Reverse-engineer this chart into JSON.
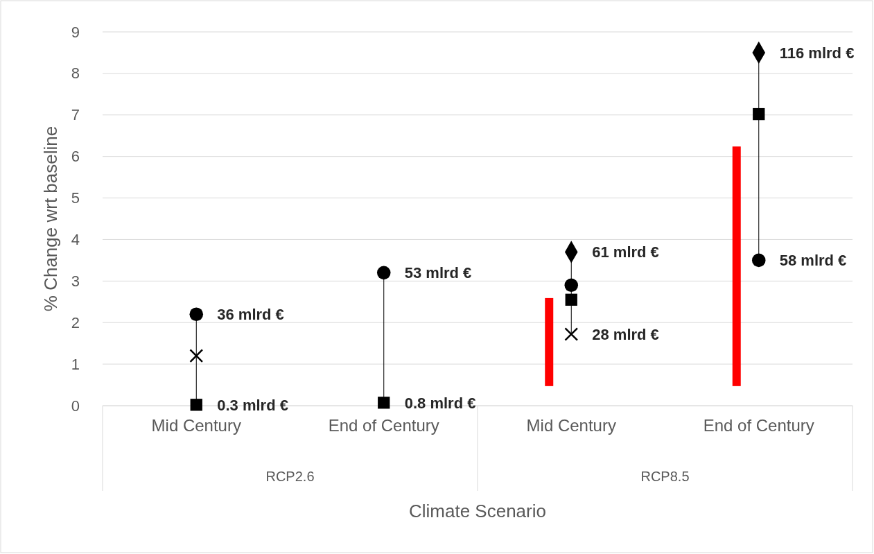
{
  "chart_data": {
    "type": "scatter",
    "xlabel": "Climate Scenario",
    "ylabel": "% Change wrt baseline",
    "categories": [
      "Mid Century",
      "End of Century",
      "Mid Century",
      "End of Century"
    ],
    "annotations": [
      "RCP2.6",
      "RCP8.5",
      {
        "text": "36 mlrd €",
        "x": "Mid Century",
        "y": 2.2
      },
      {
        "text": "53 mlrd €",
        "x": "End of Century",
        "y": 3.2
      },
      "58 mlrd €",
      {
        "text": "0.3 mlrd €",
        "x": "Mid Century",
        "y": 0.02
      },
      {
        "text": "0.8 mlrd €",
        "x": "End of Century",
        "y": 0.07
      },
      "28 mlrd €",
      "61 mlrd €",
      "116 mlrd €"
    ],
    "ylim": [
      0,
      9
    ],
    "yticks": [
      0,
      1,
      2,
      3,
      4,
      5,
      6,
      7,
      8,
      9
    ],
    "grid": "y",
    "series": [
      {
        "type": "bar",
        "color": "#ff0000",
        "base": [
          null,
          null,
          0.47,
          0.47
        ],
        "values": [
          null,
          null,
          2.12,
          5.77
        ]
      },
      {
        "type": "scatter",
        "marker": "circle",
        "color": "#000000",
        "values": [
          2.2,
          3.2,
          2.9,
          3.5
        ]
      },
      {
        "type": "scatter",
        "marker": "square",
        "color": "#000000",
        "values": [
          0.02,
          0.07,
          2.55,
          7.02
        ]
      },
      {
        "type": "scatter",
        "marker": "cross",
        "color": "#000000",
        "values": [
          1.2,
          null,
          1.72,
          null
        ]
      },
      {
        "type": "scatter",
        "marker": "diamond",
        "color": "#000000",
        "values": [
          null,
          null,
          3.7,
          8.5
        ]
      }
    ]
  }
}
